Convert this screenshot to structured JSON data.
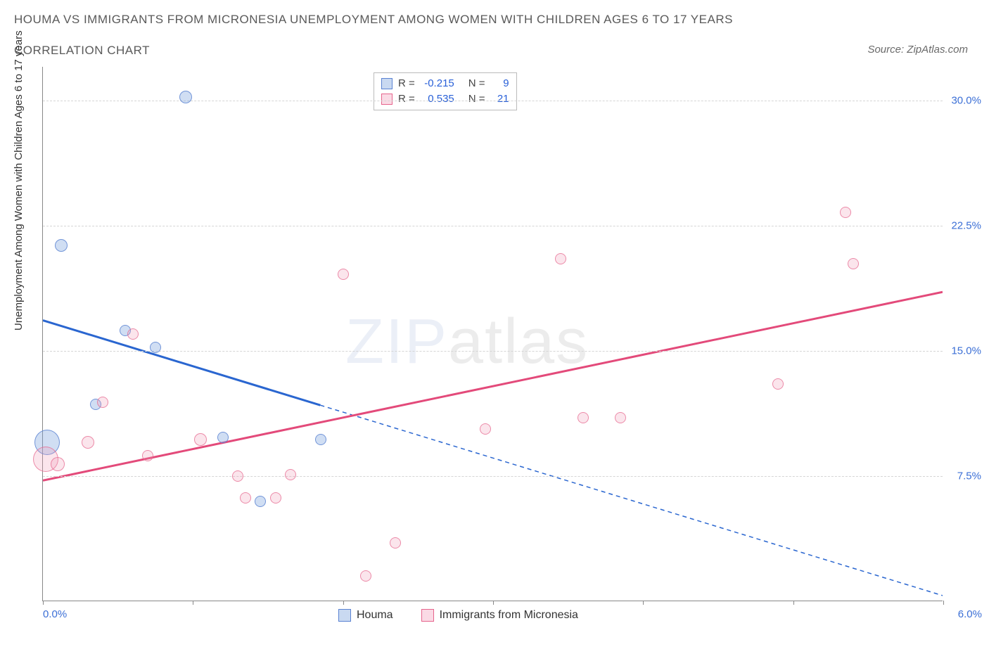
{
  "title": "HOUMA VS IMMIGRANTS FROM MICRONESIA UNEMPLOYMENT AMONG WOMEN WITH CHILDREN AGES 6 TO 17 YEARS",
  "subtitle": "CORRELATION CHART",
  "source": "Source: ZipAtlas.com",
  "y_axis_label": "Unemployment Among Women with Children Ages 6 to 17 years",
  "watermark_bold": "ZIP",
  "watermark_thin": "atlas",
  "chart": {
    "type": "scatter",
    "xlim": [
      0.0,
      6.0
    ],
    "ylim": [
      0.0,
      32.0
    ],
    "x_ticks": [
      0.0,
      1.0,
      2.0,
      3.0,
      4.0,
      5.0,
      6.0
    ],
    "x_tick_labels": {
      "0": "0.0%",
      "6": "6.0%"
    },
    "y_ticks": [
      7.5,
      15.0,
      22.5,
      30.0
    ],
    "y_tick_labels": [
      "7.5%",
      "15.0%",
      "22.5%",
      "30.0%"
    ],
    "grid_color": "#d5d5d5",
    "background_color": "#ffffff",
    "axis_color": "#888888",
    "tick_label_color": "#3b6fd6",
    "series": [
      {
        "name": "Houma",
        "color_fill": "rgba(120,160,220,0.35)",
        "color_stroke": "#5a82d2",
        "trend_color": "#2a66d0",
        "trend_solid_until_x": 1.85,
        "trend": {
          "x1": 0.0,
          "y1": 16.8,
          "x2": 6.0,
          "y2": 0.3
        },
        "R": "-0.215",
        "N": "9",
        "points": [
          {
            "x": 0.03,
            "y": 9.5,
            "r": 18
          },
          {
            "x": 0.12,
            "y": 21.3,
            "r": 9
          },
          {
            "x": 0.35,
            "y": 11.8,
            "r": 8
          },
          {
            "x": 0.55,
            "y": 16.2,
            "r": 8
          },
          {
            "x": 0.75,
            "y": 15.2,
            "r": 8
          },
          {
            "x": 0.95,
            "y": 30.2,
            "r": 9
          },
          {
            "x": 1.2,
            "y": 9.8,
            "r": 8
          },
          {
            "x": 1.45,
            "y": 6.0,
            "r": 8
          },
          {
            "x": 1.85,
            "y": 9.7,
            "r": 8
          }
        ]
      },
      {
        "name": "Immigrants from Micronesia",
        "color_fill": "rgba(240,150,180,0.25)",
        "color_stroke": "#e6648c",
        "trend_color": "#e34a7a",
        "trend": {
          "x1": 0.0,
          "y1": 7.2,
          "x2": 6.0,
          "y2": 18.5
        },
        "R": "0.535",
        "N": "21",
        "points": [
          {
            "x": 0.02,
            "y": 8.5,
            "r": 18
          },
          {
            "x": 0.1,
            "y": 8.2,
            "r": 10
          },
          {
            "x": 0.3,
            "y": 9.5,
            "r": 9
          },
          {
            "x": 0.4,
            "y": 11.9,
            "r": 8
          },
          {
            "x": 0.6,
            "y": 16.0,
            "r": 8
          },
          {
            "x": 0.7,
            "y": 8.7,
            "r": 8
          },
          {
            "x": 1.05,
            "y": 9.7,
            "r": 9
          },
          {
            "x": 1.3,
            "y": 7.5,
            "r": 8
          },
          {
            "x": 1.35,
            "y": 6.2,
            "r": 8
          },
          {
            "x": 1.55,
            "y": 6.2,
            "r": 8
          },
          {
            "x": 1.65,
            "y": 7.6,
            "r": 8
          },
          {
            "x": 2.0,
            "y": 19.6,
            "r": 8
          },
          {
            "x": 2.15,
            "y": 1.5,
            "r": 8
          },
          {
            "x": 2.35,
            "y": 3.5,
            "r": 8
          },
          {
            "x": 2.95,
            "y": 10.3,
            "r": 8
          },
          {
            "x": 3.45,
            "y": 20.5,
            "r": 8
          },
          {
            "x": 3.6,
            "y": 11.0,
            "r": 8
          },
          {
            "x": 3.85,
            "y": 11.0,
            "r": 8
          },
          {
            "x": 4.9,
            "y": 13.0,
            "r": 8
          },
          {
            "x": 5.35,
            "y": 23.3,
            "r": 8
          },
          {
            "x": 5.4,
            "y": 20.2,
            "r": 8
          }
        ]
      }
    ]
  },
  "legend_top": {
    "rows": [
      {
        "swatch": "blue",
        "r_label": "R =",
        "r_val": "-0.215",
        "n_label": "N =",
        "n_val": "9"
      },
      {
        "swatch": "pink",
        "r_label": "R =",
        "r_val": "0.535",
        "n_label": "N =",
        "n_val": "21"
      }
    ]
  },
  "legend_bottom": [
    {
      "swatch": "blue",
      "label": "Houma"
    },
    {
      "swatch": "pink",
      "label": "Immigrants from Micronesia"
    }
  ]
}
